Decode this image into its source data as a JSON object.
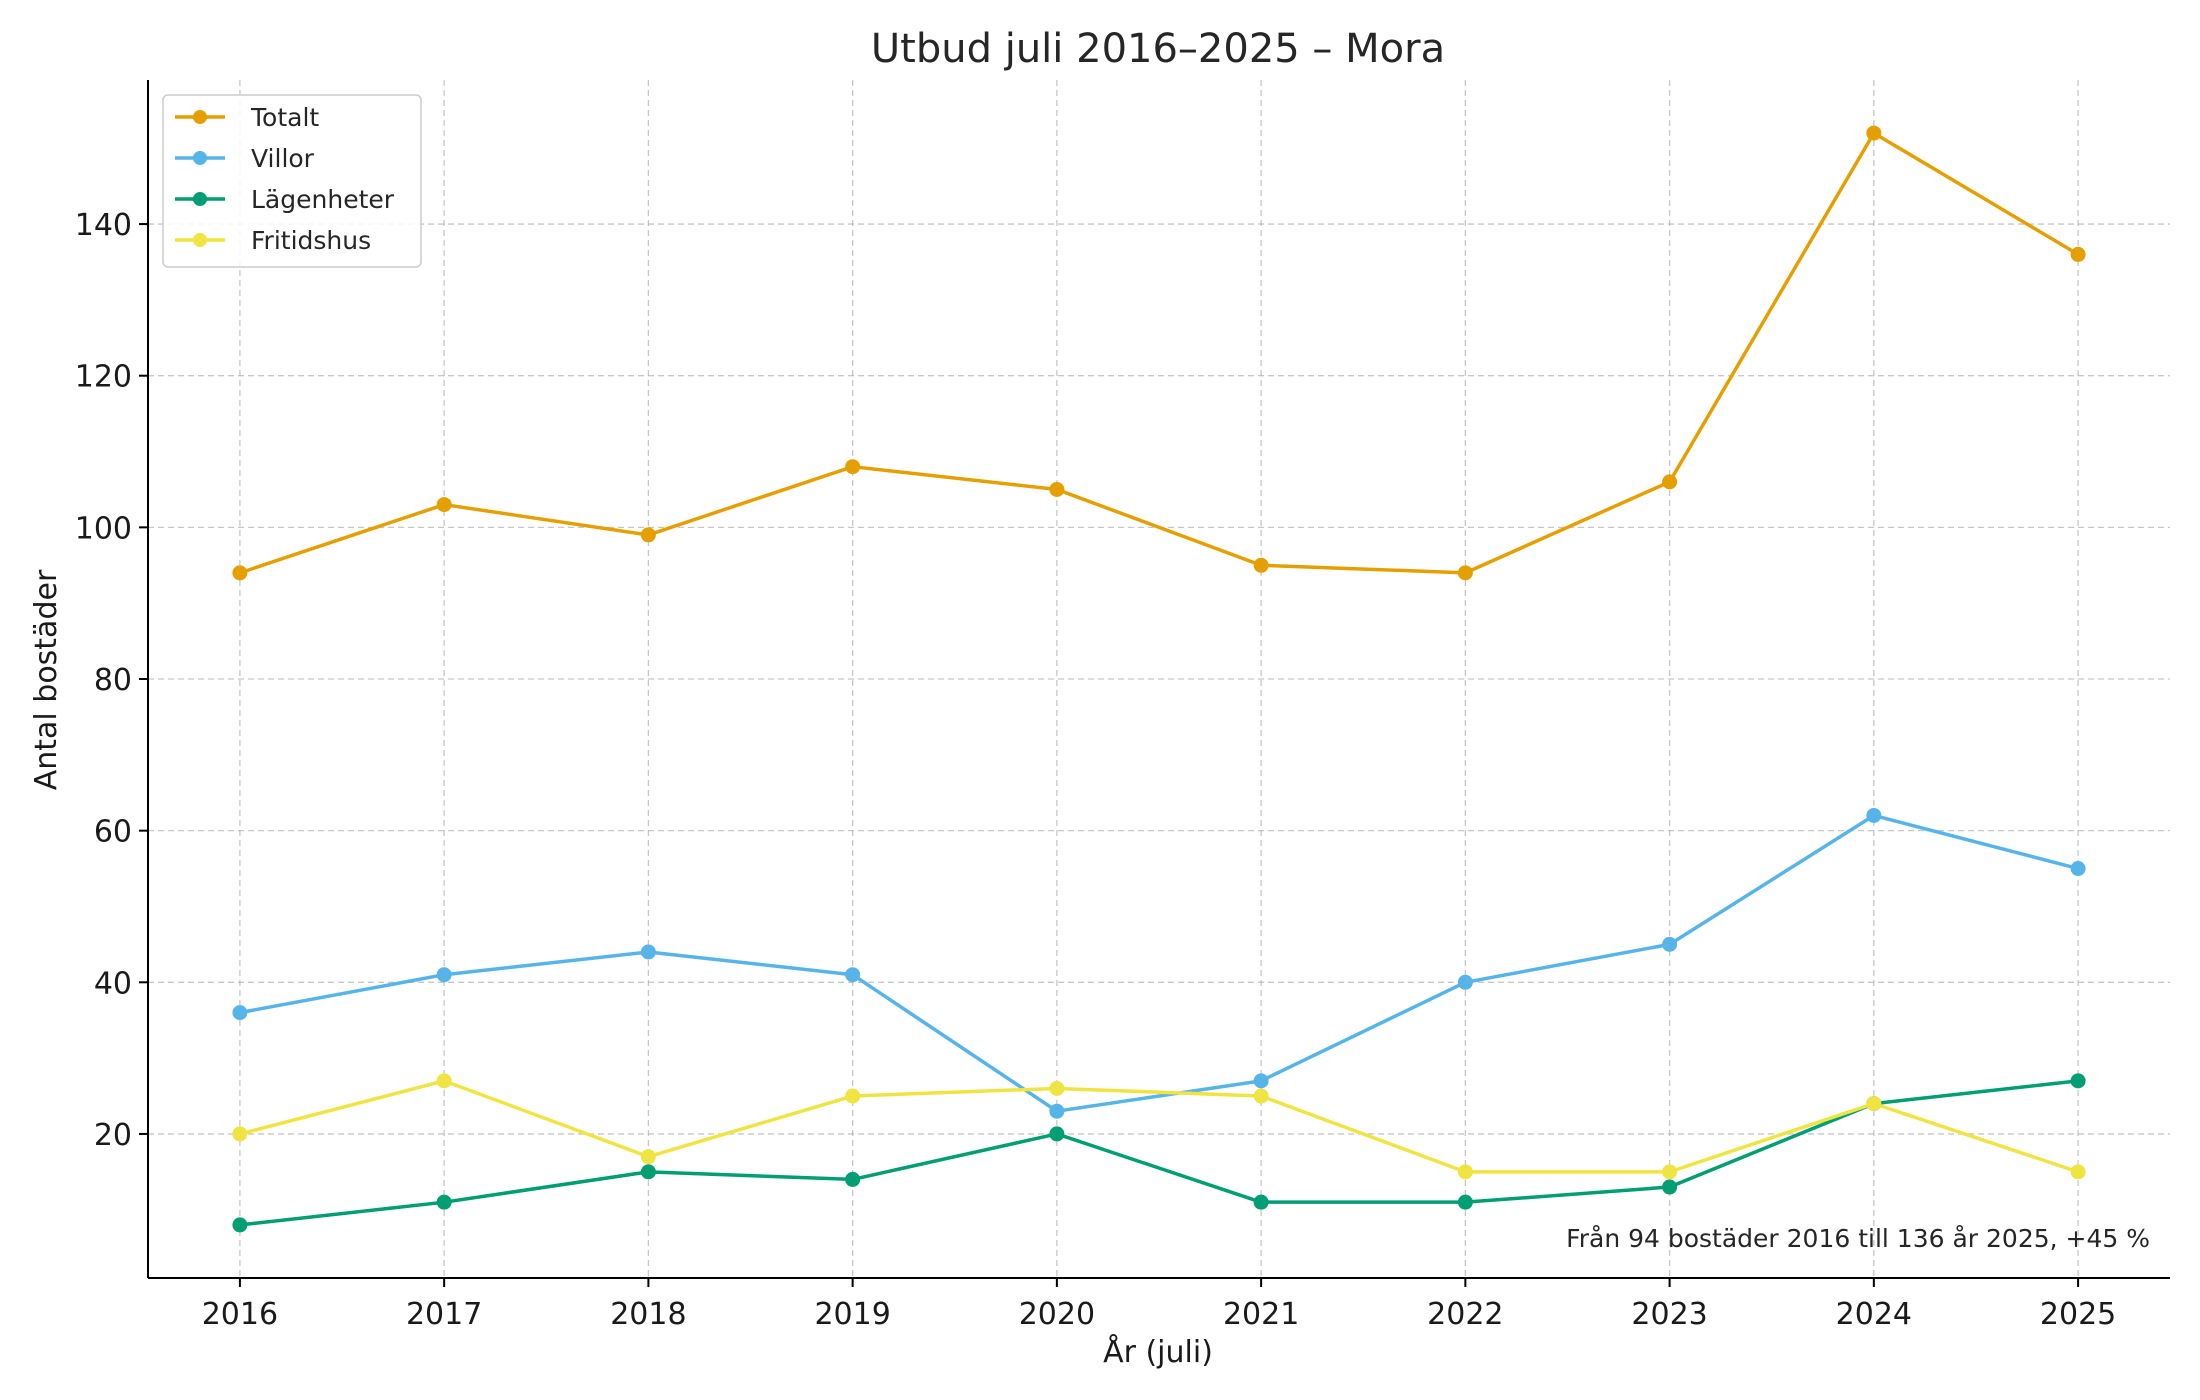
{
  "chart_data": {
    "type": "line",
    "title": "Utbud juli 2016–2025 – Mora",
    "xlabel": "År (juli)",
    "ylabel": "Antal bostäder",
    "x": [
      2016,
      2017,
      2018,
      2019,
      2020,
      2021,
      2022,
      2023,
      2024,
      2025
    ],
    "xlim": [
      2015.55,
      2025.45
    ],
    "ylim": [
      1,
      159
    ],
    "yticks": [
      20,
      40,
      60,
      80,
      100,
      120,
      140
    ],
    "grid": true,
    "legend_position": "top-left",
    "series": [
      {
        "name": "Totalt",
        "color": "#E69F00",
        "values": [
          94,
          103,
          99,
          108,
          105,
          95,
          94,
          106,
          152,
          136
        ]
      },
      {
        "name": "Villor",
        "color": "#56B4E9",
        "values": [
          36,
          41,
          44,
          41,
          23,
          27,
          40,
          45,
          62,
          55
        ]
      },
      {
        "name": "Lägenheter",
        "color": "#009E73",
        "values": [
          8,
          11,
          15,
          14,
          20,
          11,
          11,
          13,
          24,
          27
        ]
      },
      {
        "name": "Fritidshus",
        "color": "#F0E442",
        "values": [
          20,
          27,
          17,
          25,
          26,
          25,
          15,
          15,
          24,
          15
        ]
      }
    ],
    "annotation": "Från 94 bostäder 2016 till 136 år 2025, +45 %"
  }
}
